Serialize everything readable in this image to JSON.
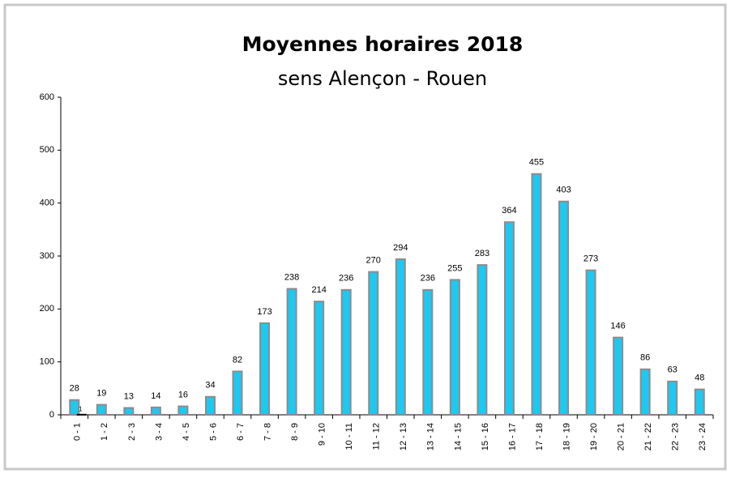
{
  "chart_data": {
    "type": "bar",
    "title": "Moyennes horaires 2018",
    "subtitle": "sens Alençon - Rouen",
    "categories": [
      "0 - 1",
      "1 - 2",
      "2 - 3",
      "3 - 4",
      "4 - 5",
      "5 - 6",
      "6 - 7",
      "7 - 8",
      "8 - 9",
      "9 - 10",
      "10 - 11",
      "11 - 12",
      "12 - 13",
      "13 - 14",
      "14 - 15",
      "15 - 16",
      "16 - 17",
      "17 - 18",
      "18 - 19",
      "19 - 20",
      "20 - 21",
      "21 - 22",
      "22 - 23",
      "23 - 24"
    ],
    "series": [
      {
        "color": "#1ec8f0",
        "values": [
          28,
          19,
          13,
          14,
          16,
          34,
          82,
          173,
          238,
          214,
          236,
          270,
          294,
          236,
          255,
          283,
          364,
          455,
          403,
          273,
          146,
          86,
          63,
          48
        ]
      },
      {
        "color": "#000000",
        "values": [
          1,
          null,
          null,
          null,
          null,
          null,
          null,
          null,
          null,
          null,
          null,
          null,
          null,
          null,
          null,
          null,
          null,
          null,
          null,
          null,
          null,
          null,
          null,
          null
        ]
      }
    ],
    "ylim": [
      0,
      600
    ],
    "yticks": [
      0,
      100,
      200,
      300,
      400,
      500,
      600
    ],
    "grid": false
  }
}
